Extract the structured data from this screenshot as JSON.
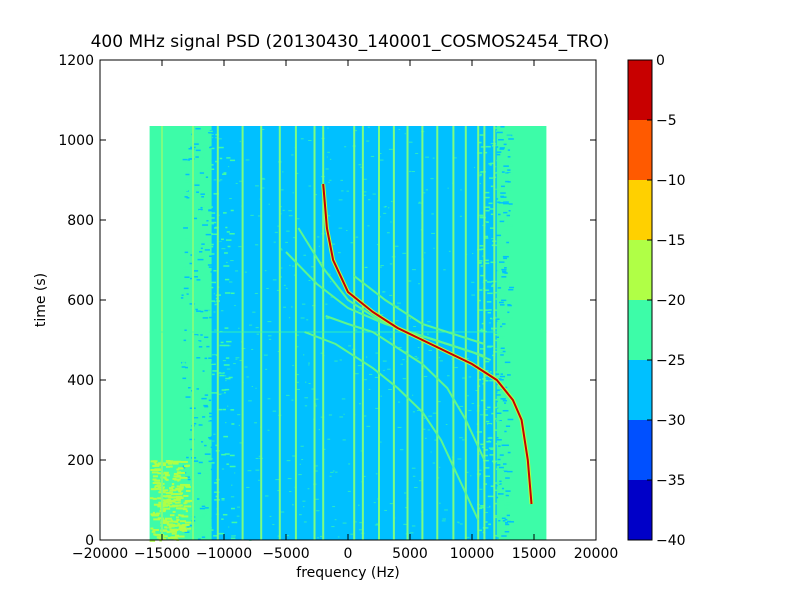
{
  "chart_data": {
    "type": "heatmap",
    "title": "400 MHz signal PSD (20130430_140001_COSMOS2454_TRO)",
    "xlabel": "frequency (Hz)",
    "ylabel": "time (s)",
    "xlim": [
      -20000,
      20000
    ],
    "ylim": [
      0,
      1200
    ],
    "x_ticks": [
      -20000,
      -15000,
      -10000,
      -5000,
      0,
      5000,
      10000,
      15000,
      20000
    ],
    "x_tick_labels": [
      "−20000",
      "−15000",
      "−10000",
      "−5000",
      "0",
      "5000",
      "10000",
      "15000",
      "20000"
    ],
    "y_ticks": [
      0,
      200,
      400,
      600,
      800,
      1000,
      1200
    ],
    "y_tick_labels": [
      "0",
      "200",
      "400",
      "600",
      "800",
      "1000",
      "1200"
    ],
    "data_extent": {
      "freq_min": -16000,
      "freq_max": 16000,
      "time_min": 0,
      "time_max": 1035
    },
    "colorbar": {
      "min": -40,
      "max": 0,
      "ticks": [
        0,
        -5,
        -10,
        -15,
        -20,
        -25,
        -30,
        -35,
        -40
      ],
      "tick_labels": [
        "0",
        "−5",
        "−10",
        "−15",
        "−20",
        "−25",
        "−30",
        "−35",
        "−40"
      ],
      "levels": [
        {
          "range": [
            -40,
            -35
          ],
          "color": "#0000c8"
        },
        {
          "range": [
            -35,
            -30
          ],
          "color": "#0050ff"
        },
        {
          "range": [
            -30,
            -25
          ],
          "color": "#00c0ff"
        },
        {
          "range": [
            -25,
            -20
          ],
          "color": "#3dfca8"
        },
        {
          "range": [
            -20,
            -15
          ],
          "color": "#b0ff46"
        },
        {
          "range": [
            -15,
            -10
          ],
          "color": "#ffd000"
        },
        {
          "range": [
            -10,
            -5
          ],
          "color": "#ff5a00"
        },
        {
          "range": [
            -5,
            0
          ],
          "color": "#c80000"
        }
      ]
    },
    "background_level_color": "#00c0ff",
    "edge_band_color": "#3dfca8",
    "main_signal": {
      "color": "#c80000",
      "points": [
        [
          -2000,
          890
        ],
        [
          -1700,
          780
        ],
        [
          -1200,
          700
        ],
        [
          0,
          620
        ],
        [
          2000,
          570
        ],
        [
          4000,
          530
        ],
        [
          6000,
          500
        ],
        [
          8000,
          470
        ],
        [
          10000,
          440
        ],
        [
          12000,
          400
        ],
        [
          13300,
          350
        ],
        [
          14000,
          300
        ],
        [
          14500,
          200
        ],
        [
          14800,
          90
        ]
      ]
    },
    "secondary_traces": [
      {
        "points": [
          [
            -4000,
            780
          ],
          [
            -2000,
            680
          ],
          [
            0,
            600
          ],
          [
            2500,
            550
          ],
          [
            5000,
            520
          ],
          [
            8000,
            490
          ],
          [
            10000,
            470
          ],
          [
            11500,
            450
          ]
        ]
      },
      {
        "points": [
          [
            -5000,
            720
          ],
          [
            -2500,
            640
          ],
          [
            0,
            580
          ],
          [
            3000,
            540
          ],
          [
            6000,
            510
          ],
          [
            9000,
            480
          ],
          [
            11000,
            460
          ]
        ]
      },
      {
        "points": [
          [
            -1800,
            560
          ],
          [
            0,
            540
          ],
          [
            2000,
            520
          ],
          [
            4000,
            480
          ],
          [
            6000,
            440
          ],
          [
            8000,
            380
          ],
          [
            9500,
            300
          ],
          [
            11000,
            200
          ]
        ]
      },
      {
        "points": [
          [
            -3500,
            520
          ],
          [
            -1000,
            490
          ],
          [
            2000,
            430
          ],
          [
            4000,
            380
          ],
          [
            6000,
            320
          ],
          [
            7500,
            250
          ],
          [
            9000,
            150
          ],
          [
            10500,
            50
          ]
        ]
      },
      {
        "points": [
          [
            500,
            660
          ],
          [
            3000,
            600
          ],
          [
            6000,
            540
          ],
          [
            9000,
            510
          ],
          [
            11000,
            490
          ]
        ]
      }
    ],
    "vertical_lines_freq": [
      -15000,
      -12500,
      -10500,
      -8500,
      -7000,
      -5500,
      -4200,
      -2700,
      -2000,
      500,
      1200,
      2500,
      3700,
      4800,
      6000,
      7200,
      8500,
      9500,
      10500,
      11000,
      11800
    ],
    "edge_speckle_band": {
      "freq_range": [
        -16000,
        -13000
      ],
      "time_range": [
        0,
        200
      ]
    },
    "horizontal_line_time": 520
  }
}
